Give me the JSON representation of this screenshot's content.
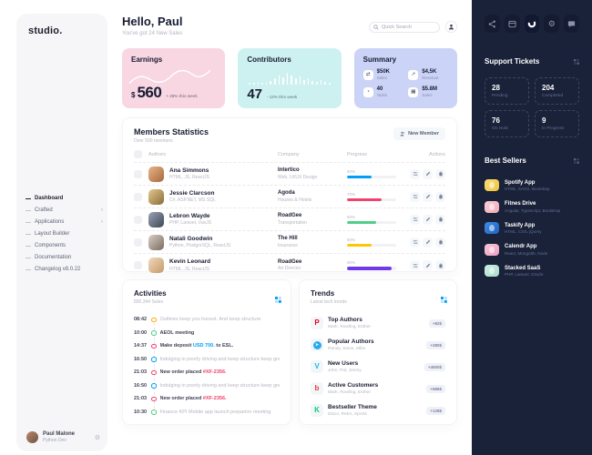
{
  "left_sidebar": {
    "logo": "studio.",
    "nav": [
      {
        "label": "Dashboard"
      },
      {
        "label": "Crafted"
      },
      {
        "label": "Applications"
      },
      {
        "label": "Layout Builder"
      },
      {
        "label": "Components"
      },
      {
        "label": "Documentation"
      },
      {
        "label": "Changelog v8.0.22"
      }
    ],
    "user": {
      "name": "Paul Malone",
      "role": "Python Dev"
    }
  },
  "header": {
    "greeting": "Hello, Paul",
    "subtitle": "You've got 24 New Sales",
    "search_placeholder": "Quick Search"
  },
  "stat_cards": {
    "earnings": {
      "title": "Earnings",
      "currency": "$",
      "value": "560",
      "delta": "+ 28% this week"
    },
    "contributors": {
      "title": "Contributors",
      "value": "47",
      "delta": "- 12% this week",
      "bars": [
        2,
        2,
        3,
        2,
        2,
        4,
        7,
        10,
        8,
        13,
        10,
        7,
        9,
        5,
        7,
        4,
        3,
        5,
        3,
        2
      ]
    },
    "summary": {
      "title": "Summary",
      "items": [
        {
          "icon": "swap-icon",
          "value": "$50K",
          "label": "Sales"
        },
        {
          "icon": "trend-icon",
          "value": "$4,5K",
          "label": "Revenue"
        },
        {
          "icon": "clock-icon",
          "value": "40",
          "label": "Tasks"
        },
        {
          "icon": "grid-icon",
          "value": "$5.8M",
          "label": "Sales"
        }
      ]
    }
  },
  "members": {
    "title": "Members Statistics",
    "subtitle": "Over 500 members",
    "new_member_label": "New Member",
    "columns": {
      "authors": "Authors",
      "company": "Company",
      "progress": "Progress",
      "actions": "Actions"
    },
    "rows": [
      {
        "name": "Ana Simmons",
        "skills": "HTML, JS, ReactJS",
        "company": "Intertico",
        "company_sub": "Web, UI/UX Design",
        "progress_label": "50%",
        "progress_percent": 50,
        "progress_color": "#009ef7"
      },
      {
        "name": "Jessie Clarcson",
        "skills": "C#, ASP.NET, MS SQL",
        "company": "Agoda",
        "company_sub": "Houses & Hotels",
        "progress_label": "70%",
        "progress_percent": 70,
        "progress_color": "#f1416c"
      },
      {
        "name": "Lebron Wayde",
        "skills": "PHP, Laravel, VueJS",
        "company": "RoadGee",
        "company_sub": "Transportation",
        "progress_label": "60%",
        "progress_percent": 60,
        "progress_color": "#50cd89"
      },
      {
        "name": "Natali Goodwin",
        "skills": "Python, PostgreSQL, ReactJS",
        "company": "The Hill",
        "company_sub": "Insurance",
        "progress_label": "50%",
        "progress_percent": 50,
        "progress_color": "#ffc700"
      },
      {
        "name": "Kevin Leonard",
        "skills": "HTML, JS, ReactJS",
        "company": "RoadGee",
        "company_sub": "Art Director",
        "progress_label": "90%",
        "progress_percent": 90,
        "progress_color": "#7239ea"
      }
    ]
  },
  "activities": {
    "title": "Activities",
    "subtitle": "890,344 Sales",
    "items": [
      {
        "time": "08:42",
        "dot_color": "#ffa800",
        "pre": "Outlines keep you honest. And keep structure",
        "link": "",
        "post": "",
        "bold": false
      },
      {
        "time": "10:00",
        "dot_color": "#50cd89",
        "pre": "AEOL meeting",
        "link": "",
        "post": "",
        "bold": true
      },
      {
        "time": "14:37",
        "dot_color": "#f1416c",
        "pre": "Make deposit ",
        "link": "USD 700.",
        "post": " to ESL.",
        "bold": true,
        "link_color": "#009ef7"
      },
      {
        "time": "16:50",
        "dot_color": "#009ef7",
        "pre": "Indulging in poorly driving and keep structure keep great",
        "link": "",
        "post": "",
        "bold": false
      },
      {
        "time": "21:03",
        "dot_color": "#f1416c",
        "pre": "New order placed ",
        "link": "#XF-2356.",
        "post": "",
        "bold": true,
        "link_color": "#f1416c"
      },
      {
        "time": "16:50",
        "dot_color": "#009ef7",
        "pre": "Indulging in poorly driving and keep structure keep great",
        "link": "",
        "post": "",
        "bold": false
      },
      {
        "time": "21:03",
        "dot_color": "#f1416c",
        "pre": "New order placed ",
        "link": "#XF-2356.",
        "post": "",
        "bold": true,
        "link_color": "#f1416c"
      },
      {
        "time": "10:30",
        "dot_color": "#50cd89",
        "pre": "Finance KPI Mobile app launch preparion meeting",
        "link": "",
        "post": "",
        "bold": false
      }
    ]
  },
  "trends": {
    "title": "Trends",
    "subtitle": "Latest tech trends",
    "items": [
      {
        "brand": "pinterest",
        "letter": "P",
        "brand_color": "#e60023",
        "title": "Top Authors",
        "subtitle": "Mark, Rowling, Esther",
        "badge": "+82$"
      },
      {
        "brand": "telegram",
        "letter": "➤",
        "brand_color": "#2aabee",
        "title": "Popular Authors",
        "subtitle": "Randy, Steve, Mike",
        "badge": "+280$"
      },
      {
        "brand": "vimeo",
        "letter": "V",
        "brand_color": "#1ab7ea",
        "title": "New Users",
        "subtitle": "John, Pat, Jimmy",
        "badge": "+4500$"
      },
      {
        "brand": "bing",
        "letter": "b",
        "brand_color": "#e03a3f",
        "title": "Active Customers",
        "subtitle": "Mark, Rowling, Esther",
        "badge": "+686$"
      },
      {
        "brand": "kickstarter",
        "letter": "K",
        "brand_color": "#05ce78",
        "title": "Bestseller Theme",
        "subtitle": "Disco, Retro, Sports",
        "badge": "+128$"
      }
    ]
  },
  "right_sidebar": {
    "support": {
      "title": "Support Tickets",
      "cards": [
        {
          "value": "28",
          "label": "Pending"
        },
        {
          "value": "204",
          "label": "Completed"
        },
        {
          "value": "76",
          "label": "On Hold"
        },
        {
          "value": "9",
          "label": "In Progress"
        }
      ]
    },
    "best_sellers": {
      "title": "Best Sellers",
      "items": [
        {
          "title": "Spotify App",
          "subtitle": "HTML, SASS, Bootstrap",
          "thumb_color": "#f6d55c"
        },
        {
          "title": "Fitnes Drive",
          "subtitle": "Angular, Typescript, Bootstrap",
          "thumb_color": "#f8c3cd"
        },
        {
          "title": "Taskify App",
          "subtitle": "HTML, CSS, jQuery",
          "thumb_color": "#2f7cd8"
        },
        {
          "title": "Calendr App",
          "subtitle": "React, Mongobb, Node",
          "thumb_color": "#f0b6d3"
        },
        {
          "title": "Stacked SaaS",
          "subtitle": "PHP, Laravel, Oracle",
          "thumb_color": "#bfe9db"
        }
      ]
    }
  },
  "colors": {
    "accent_blue": "#009ef7",
    "danger": "#f1416c",
    "success": "#50cd89",
    "warning": "#ffc700",
    "purple": "#7239ea",
    "dark_panel": "#1a2239",
    "earnings_bg": "#f8d6e2",
    "contributors_bg": "#cdf1f0",
    "summary_bg": "#cbd3f6"
  }
}
